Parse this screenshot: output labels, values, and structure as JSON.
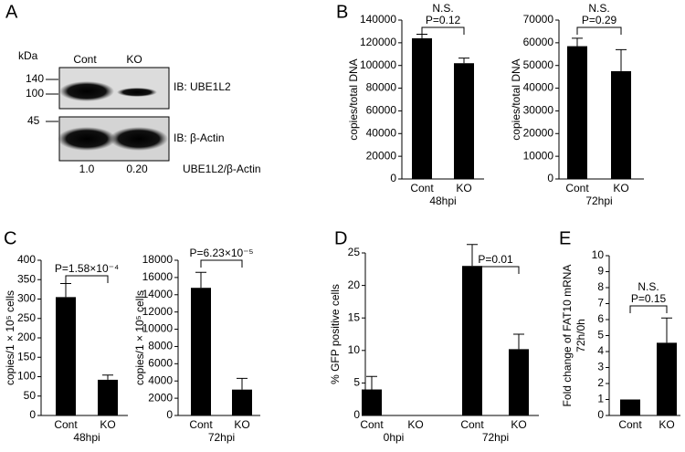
{
  "panel_labels": [
    "A",
    "B",
    "C",
    "D",
    "E"
  ],
  "blot": {
    "kda_label": "kDa",
    "markers": [
      "140",
      "100",
      "45"
    ],
    "lanes": [
      "Cont",
      "KO"
    ],
    "probes": [
      "IB: UBE1L2",
      "IB: β-Actin"
    ],
    "ratios": [
      "1.0",
      "0.20"
    ],
    "ratio_label": "UBE1L2/β-Actin"
  },
  "chart_data": [
    {
      "type": "bar",
      "categories": [
        "Cont",
        "KO"
      ],
      "values": [
        124000,
        102000
      ],
      "errors": [
        3500,
        4500
      ],
      "ylim": [
        0,
        140000
      ],
      "yticks": [
        0,
        20000,
        40000,
        60000,
        80000,
        100000,
        120000,
        140000
      ],
      "ylabel": [
        "copies/total DNA"
      ],
      "xlabel": "48hpi",
      "annotations": [
        "N.S.",
        "P=0.12"
      ],
      "color": "#000000"
    },
    {
      "type": "bar",
      "categories": [
        "Cont",
        "KO"
      ],
      "values": [
        58500,
        47500
      ],
      "errors": [
        3500,
        9500
      ],
      "ylim": [
        0,
        70000
      ],
      "yticks": [
        0,
        10000,
        20000,
        30000,
        40000,
        50000,
        60000,
        70000
      ],
      "ylabel": [
        "copies/total DNA"
      ],
      "xlabel": "72hpi",
      "annotations": [
        "N.S.",
        "P=0.29"
      ],
      "color": "#000000"
    },
    {
      "type": "bar",
      "categories": [
        "Cont",
        "KO"
      ],
      "values": [
        305,
        92
      ],
      "errors": [
        35,
        12
      ],
      "ylim": [
        0,
        400
      ],
      "yticks": [
        0,
        50,
        100,
        150,
        200,
        250,
        300,
        350,
        400
      ],
      "ylabel": [
        "copies/1 × 10⁵ cells"
      ],
      "xlabel": "48hpi",
      "annotations": [
        "P=1.58×10⁻⁴"
      ],
      "color": "#000000"
    },
    {
      "type": "bar",
      "categories": [
        "Cont",
        "KO"
      ],
      "values": [
        14800,
        3000
      ],
      "errors": [
        1800,
        1300
      ],
      "ylim": [
        0,
        18000
      ],
      "yticks": [
        0,
        2000,
        4000,
        6000,
        8000,
        10000,
        12000,
        14000,
        16000,
        18000
      ],
      "ylabel": [
        "copies/1 × 10⁵ cells"
      ],
      "xlabel": "72hpi",
      "annotations": [
        "P=6.23×10⁻⁵"
      ],
      "color": "#000000"
    },
    {
      "type": "bar",
      "categories": [
        "Cont",
        "KO",
        "Cont",
        "KO"
      ],
      "values": [
        4,
        null,
        23,
        10.2
      ],
      "errors": [
        2,
        null,
        3.3,
        2.3
      ],
      "ylim": [
        0,
        25
      ],
      "yticks": [
        0,
        5,
        10,
        15,
        20,
        25
      ],
      "ylabel": [
        "% GFP positive cells"
      ],
      "group_labels": [
        "0hpi",
        "72hpi"
      ],
      "annotations": [
        "P=0.01"
      ],
      "color": "#000000"
    },
    {
      "type": "bar",
      "categories": [
        "Cont",
        "KO"
      ],
      "values": [
        1,
        4.55
      ],
      "errors": [
        null,
        1.55
      ],
      "ylim": [
        0,
        10
      ],
      "yticks": [
        0,
        1,
        2,
        3,
        4,
        5,
        6,
        7,
        8,
        9,
        10
      ],
      "ylabel": [
        "Fold change of FAT10 mRNA",
        "72h/0h"
      ],
      "annotations": [
        "N.S.",
        "P=0.15"
      ],
      "color": "#000000"
    }
  ]
}
